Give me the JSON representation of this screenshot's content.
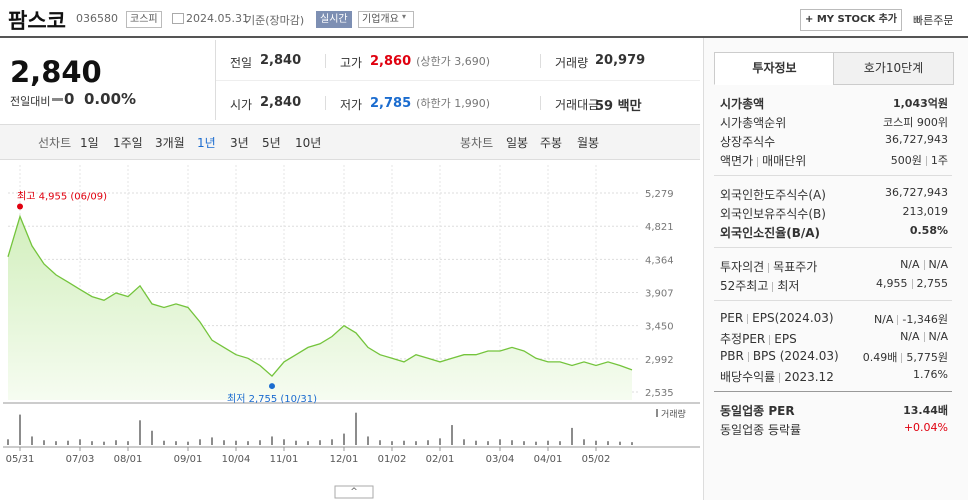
{
  "header": {
    "name": "팜스코",
    "code": "036580",
    "market": "코스피",
    "date": "2024.05.31",
    "basis": "기준(장마감)",
    "realtime": "실시간",
    "company": "기업개요",
    "mystock": "+ MY STOCK 추가",
    "order": "빠른주문"
  },
  "quote": {
    "price": "2,840",
    "change_label": "전일대비",
    "change": "0",
    "rate": "0.00%"
  },
  "stats": [
    {
      "label": "전일",
      "value": "2,840"
    },
    {
      "label": "고가",
      "value": "2,860",
      "note": "(상한가 3,690)"
    },
    {
      "label": "거래량",
      "value": "20,979"
    },
    {
      "label": "시가",
      "value": "2,840"
    },
    {
      "label": "저가",
      "value": "2,785",
      "note": "(하한가 1,990)"
    },
    {
      "label": "거래대금",
      "value": "59 백만"
    }
  ],
  "periods": {
    "line_label": "선차트",
    "line": [
      "1일",
      "1주일",
      "3개월",
      "1년",
      "3년",
      "5년",
      "10년"
    ],
    "candle_label": "봉차트",
    "candle": [
      "일봉",
      "주봉",
      "월봉"
    ]
  },
  "side": {
    "tabs": [
      "투자정보",
      "호가10단계"
    ],
    "sections": [
      [
        {
          "label": [
            "시가총액"
          ],
          "value": [
            "1,043억원"
          ]
        },
        {
          "label": [
            "시가총액순위"
          ],
          "value": [
            "코스피 900위"
          ]
        },
        {
          "label": [
            "상장주식수"
          ],
          "value": [
            "36,727,943"
          ]
        },
        {
          "label": [
            "액면가",
            "매매단위"
          ],
          "value": [
            "500원",
            "1주"
          ]
        }
      ],
      [
        {
          "label": [
            "외국인한도주식수(A)"
          ],
          "value": [
            "36,727,943"
          ]
        },
        {
          "label": [
            "외국인보유주식수(B)"
          ],
          "value": [
            "213,019"
          ]
        },
        {
          "label": [
            "외국인소진율(B/A)"
          ],
          "value": [
            "0.58%"
          ]
        }
      ],
      [
        {
          "label": [
            "투자의견",
            "목표주가"
          ],
          "value": [
            "N/A",
            "N/A"
          ]
        },
        {
          "label": [
            "52주최고",
            "최저"
          ],
          "value": [
            "4,955",
            "2,755"
          ]
        }
      ],
      [
        {
          "label": [
            "PER",
            "EPS(2024.03)"
          ],
          "value": [
            "N/A",
            "-1,346원"
          ]
        },
        {
          "label": [
            "추정PER",
            "EPS"
          ],
          "value": [
            "N/A",
            "N/A"
          ]
        },
        {
          "label": [
            "PBR",
            "BPS (2024.03)"
          ],
          "value": [
            "0.49배",
            "5,775원"
          ]
        },
        {
          "label": [
            "배당수익률",
            "2023.12"
          ],
          "value": [
            "1.76%"
          ]
        }
      ],
      [
        {
          "label": [
            "동일업종 PER"
          ],
          "value": [
            "13.44배"
          ]
        },
        {
          "label": [
            "동일업종 등락률"
          ],
          "value": [
            "+0.04%"
          ]
        }
      ]
    ]
  },
  "chart_data": {
    "type": "line",
    "color": "#74c43c",
    "grid": true,
    "categories": [
      null,
      "05/31",
      null,
      null,
      null,
      null,
      "07/03",
      null,
      null,
      null,
      "08/01",
      null,
      null,
      null,
      null,
      "09/01",
      null,
      null,
      null,
      "10/04",
      null,
      null,
      null,
      "11/01",
      null,
      null,
      null,
      null,
      "12/01",
      null,
      null,
      null,
      "01/02",
      null,
      null,
      null,
      "02/01",
      null,
      null,
      null,
      null,
      "03/04",
      null,
      null,
      null,
      "04/01",
      null,
      null,
      null,
      "05/02",
      null,
      null,
      null
    ],
    "values": [
      4400,
      4955,
      4550,
      4300,
      4150,
      4050,
      3950,
      3850,
      3800,
      3900,
      3850,
      4000,
      3750,
      3700,
      3750,
      3700,
      3500,
      3250,
      3150,
      3050,
      3000,
      2900,
      2755,
      2950,
      3050,
      3150,
      3200,
      3300,
      3450,
      3350,
      3150,
      3050,
      3000,
      2950,
      3050,
      3000,
      2950,
      3000,
      3050,
      3050,
      3100,
      3100,
      3150,
      3100,
      3000,
      2950,
      2950,
      2900,
      2950,
      2900,
      2950,
      2900,
      2840
    ],
    "ylim": [
      2425,
      5665
    ],
    "yticks": [
      {
        "value": 5279,
        "label": "5,279"
      },
      {
        "value": 4821,
        "label": "4,821"
      },
      {
        "value": 4364,
        "label": "4,364"
      },
      {
        "value": 3907,
        "label": "3,907"
      },
      {
        "value": 3450,
        "label": "3,450"
      },
      {
        "value": 2992,
        "label": "2,992"
      },
      {
        "value": 2535,
        "label": "2,535"
      }
    ],
    "annotations": {
      "high": "최고 4,955 (06/09)",
      "low": "최저 2,755 (10/31)"
    },
    "volume": {
      "name": "거래량",
      "color": "#8c8c8c",
      "ylim": [
        0,
        400000
      ],
      "values": [
        60000,
        320000,
        90000,
        50000,
        40000,
        45000,
        60000,
        40000,
        35000,
        50000,
        40000,
        260000,
        150000,
        45000,
        40000,
        35000,
        60000,
        80000,
        50000,
        45000,
        40000,
        50000,
        90000,
        60000,
        45000,
        40000,
        50000,
        60000,
        120000,
        340000,
        90000,
        50000,
        40000,
        45000,
        40000,
        50000,
        70000,
        210000,
        60000,
        45000,
        40000,
        60000,
        50000,
        40000,
        35000,
        45000,
        40000,
        180000,
        60000,
        45000,
        40000,
        35000,
        30000
      ]
    }
  }
}
